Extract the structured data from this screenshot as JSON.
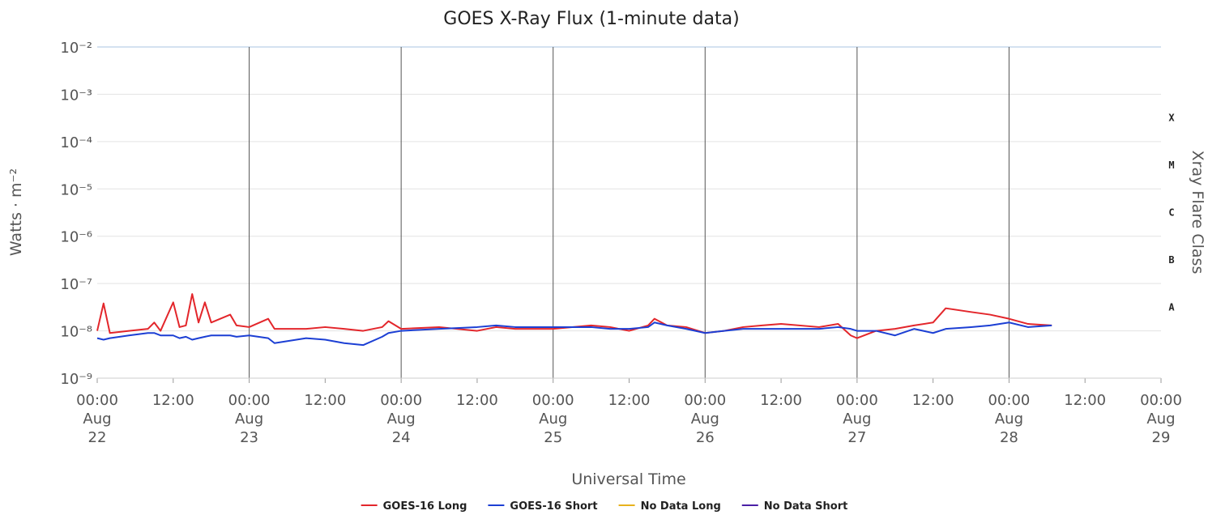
{
  "chart_data": {
    "type": "line",
    "title": "GOES X-Ray Flux (1-minute data)",
    "x_label": "Universal Time",
    "y_label": "Watts · m⁻²",
    "y2_label": "Xray Flare Class",
    "log_y": true,
    "grid": true,
    "legend": "bottom",
    "xlim": [
      "Aug 22 00:00",
      "Aug 29 00:00"
    ],
    "xticks": [
      {
        "value": "Aug 22 00:00",
        "label": [
          "00:00",
          "Aug",
          "22"
        ]
      },
      {
        "value": "Aug 22 12:00",
        "label": [
          "12:00"
        ]
      },
      {
        "value": "Aug 23 00:00",
        "label": [
          "00:00",
          "Aug",
          "23"
        ]
      },
      {
        "value": "Aug 23 12:00",
        "label": [
          "12:00"
        ]
      },
      {
        "value": "Aug 24 00:00",
        "label": [
          "00:00",
          "Aug",
          "24"
        ]
      },
      {
        "value": "Aug 24 12:00",
        "label": [
          "12:00"
        ]
      },
      {
        "value": "Aug 25 00:00",
        "label": [
          "00:00",
          "Aug",
          "25"
        ]
      },
      {
        "value": "Aug 25 12:00",
        "label": [
          "12:00"
        ]
      },
      {
        "value": "Aug 26 00:00",
        "label": [
          "00:00",
          "Aug",
          "26"
        ]
      },
      {
        "value": "Aug 26 12:00",
        "label": [
          "12:00"
        ]
      },
      {
        "value": "Aug 27 00:00",
        "label": [
          "00:00",
          "Aug",
          "27"
        ]
      },
      {
        "value": "Aug 27 12:00",
        "label": [
          "12:00"
        ]
      },
      {
        "value": "Aug 28 00:00",
        "label": [
          "00:00",
          "Aug",
          "28"
        ]
      },
      {
        "value": "Aug 28 12:00",
        "label": [
          "12:00"
        ]
      },
      {
        "value": "Aug 29 00:00",
        "label": [
          "00:00",
          "Aug",
          "29"
        ]
      }
    ],
    "ylim": [
      1e-09,
      0.01
    ],
    "yticks": [
      {
        "value": 1e-09,
        "label": "10⁻⁹"
      },
      {
        "value": 1e-08,
        "label": "10⁻⁸"
      },
      {
        "value": 1e-07,
        "label": "10⁻⁷"
      },
      {
        "value": 1e-06,
        "label": "10⁻⁶"
      },
      {
        "value": 1e-05,
        "label": "10⁻⁵"
      },
      {
        "value": 0.0001,
        "label": "10⁻⁴"
      },
      {
        "value": 0.001,
        "label": "10⁻³"
      },
      {
        "value": 0.01,
        "label": "10⁻²"
      }
    ],
    "flare_classes": [
      {
        "value": 1e-08,
        "label": "A"
      },
      {
        "value": 1e-07,
        "label": "B"
      },
      {
        "value": 1e-06,
        "label": "C"
      },
      {
        "value": 1e-05,
        "label": "M"
      },
      {
        "value": 0.0001,
        "label": "X"
      }
    ],
    "x": [
      "Aug 22 00:00",
      "Aug 22 01:00",
      "Aug 22 02:00",
      "Aug 22 05:00",
      "Aug 22 08:00",
      "Aug 22 09:00",
      "Aug 22 10:00",
      "Aug 22 12:00",
      "Aug 22 13:00",
      "Aug 22 14:00",
      "Aug 22 15:00",
      "Aug 22 16:00",
      "Aug 22 17:00",
      "Aug 22 18:00",
      "Aug 22 21:00",
      "Aug 22 22:00",
      "Aug 23 00:00",
      "Aug 23 03:00",
      "Aug 23 04:00",
      "Aug 23 09:00",
      "Aug 23 12:00",
      "Aug 23 15:00",
      "Aug 23 18:00",
      "Aug 23 21:00",
      "Aug 23 22:00",
      "Aug 24 00:00",
      "Aug 24 06:00",
      "Aug 24 12:00",
      "Aug 24 15:00",
      "Aug 24 18:00",
      "Aug 25 00:00",
      "Aug 25 06:00",
      "Aug 25 09:00",
      "Aug 25 12:00",
      "Aug 25 15:00",
      "Aug 25 16:00",
      "Aug 25 18:00",
      "Aug 25 21:00",
      "Aug 26 00:00",
      "Aug 26 03:00",
      "Aug 26 06:00",
      "Aug 26 09:00",
      "Aug 26 12:00",
      "Aug 26 18:00",
      "Aug 26 21:00",
      "Aug 26 23:00",
      "Aug 27 00:00",
      "Aug 27 03:00",
      "Aug 27 06:00",
      "Aug 27 09:00",
      "Aug 27 12:00",
      "Aug 27 14:00",
      "Aug 27 18:00",
      "Aug 27 21:00",
      "Aug 28 00:00",
      "Aug 28 03:00",
      "Aug 28 06:45"
    ],
    "series": [
      {
        "name": "GOES-16 Long",
        "color": "#e3262b",
        "values": [
          1e-08,
          3.8e-08,
          9e-09,
          1e-08,
          1.1e-08,
          1.5e-08,
          1e-08,
          4e-08,
          1.2e-08,
          1.3e-08,
          6e-08,
          1.5e-08,
          4e-08,
          1.5e-08,
          2.2e-08,
          1.3e-08,
          1.2e-08,
          1.8e-08,
          1.1e-08,
          1.1e-08,
          1.2e-08,
          1.1e-08,
          1e-08,
          1.2e-08,
          1.6e-08,
          1.1e-08,
          1.2e-08,
          1e-08,
          1.2e-08,
          1.1e-08,
          1.1e-08,
          1.3e-08,
          1.2e-08,
          1e-08,
          1.3e-08,
          1.8e-08,
          1.3e-08,
          1.2e-08,
          9e-09,
          1e-08,
          1.2e-08,
          1.3e-08,
          1.4e-08,
          1.2e-08,
          1.4e-08,
          8e-09,
          7e-09,
          1e-08,
          1.1e-08,
          1.3e-08,
          1.5e-08,
          3e-08,
          2.5e-08,
          2.2e-08,
          1.8e-08,
          1.4e-08,
          1.3e-08
        ]
      },
      {
        "name": "GOES-16 Short",
        "color": "#1c3fd4",
        "values": [
          7e-09,
          6.5e-09,
          7e-09,
          8e-09,
          9e-09,
          9e-09,
          8e-09,
          8e-09,
          7e-09,
          7.5e-09,
          6.5e-09,
          7e-09,
          7.5e-09,
          8e-09,
          8e-09,
          7.5e-09,
          8e-09,
          7e-09,
          5.5e-09,
          7e-09,
          6.5e-09,
          5.5e-09,
          5e-09,
          7.5e-09,
          9e-09,
          1e-08,
          1.1e-08,
          1.2e-08,
          1.3e-08,
          1.2e-08,
          1.2e-08,
          1.2e-08,
          1.1e-08,
          1.1e-08,
          1.2e-08,
          1.5e-08,
          1.3e-08,
          1.1e-08,
          9e-09,
          1e-08,
          1.1e-08,
          1.1e-08,
          1.1e-08,
          1.1e-08,
          1.2e-08,
          1.1e-08,
          1e-08,
          1e-08,
          8e-09,
          1.1e-08,
          9e-09,
          1.1e-08,
          1.2e-08,
          1.3e-08,
          1.5e-08,
          1.2e-08,
          1.3e-08
        ]
      },
      {
        "name": "No Data Long",
        "color": "#e8b21c",
        "values": [
          null,
          null,
          null,
          null,
          null,
          null,
          null,
          null,
          null,
          null,
          null,
          null,
          null,
          null,
          null,
          null,
          null,
          null,
          null,
          null,
          null,
          null,
          null,
          null,
          null,
          null,
          null,
          null,
          null,
          null,
          null,
          null,
          null,
          null,
          null,
          null,
          null,
          null,
          null,
          null,
          null,
          null,
          null,
          null,
          null,
          null,
          null,
          null,
          null,
          null,
          null,
          null,
          null,
          null,
          null,
          null,
          null
        ]
      },
      {
        "name": "No Data Short",
        "color": "#4a1fa6",
        "values": [
          null,
          null,
          null,
          null,
          null,
          null,
          null,
          null,
          null,
          null,
          null,
          null,
          null,
          null,
          null,
          null,
          null,
          null,
          null,
          null,
          null,
          null,
          null,
          null,
          null,
          null,
          null,
          null,
          null,
          null,
          null,
          null,
          null,
          null,
          null,
          null,
          null,
          null,
          null,
          null,
          null,
          null,
          null,
          null,
          null,
          null,
          null,
          null,
          null,
          null,
          null,
          null,
          null,
          null,
          null,
          null,
          null
        ]
      }
    ]
  }
}
